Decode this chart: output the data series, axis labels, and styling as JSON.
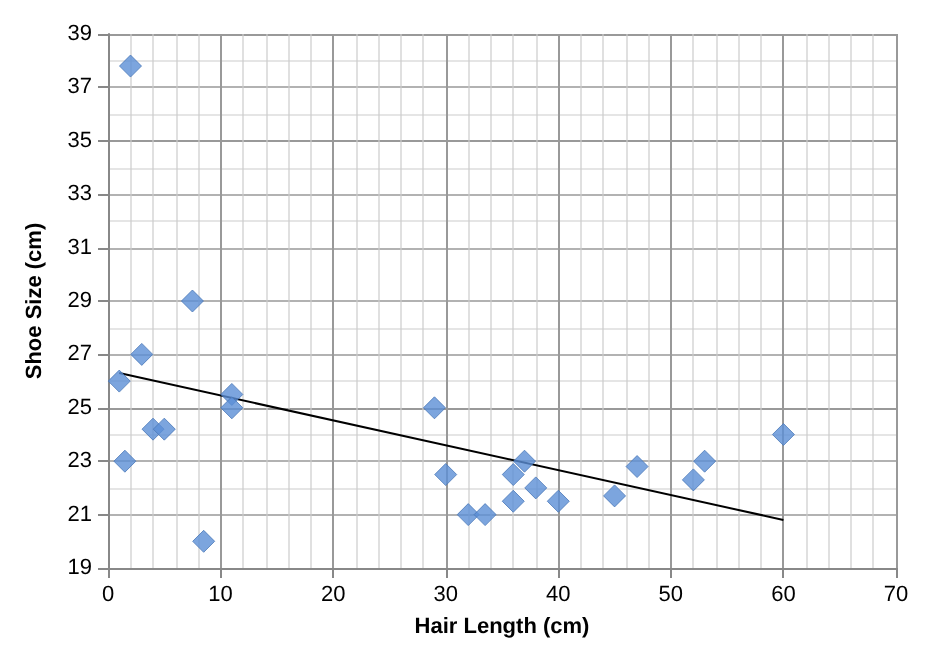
{
  "chart_data": {
    "type": "scatter",
    "xlabel": "Hair Length (cm)",
    "ylabel": "Shoe Size (cm)",
    "series": [
      {
        "color": "#5b8fd6",
        "marker": "diamond",
        "x": [
          1,
          1.5,
          2,
          3,
          4,
          5,
          7.5,
          8.5,
          11,
          11,
          29,
          30,
          32,
          33.5,
          36,
          37,
          36,
          38,
          40,
          45,
          47,
          52,
          53,
          60
        ],
        "values": [
          26,
          23,
          37.8,
          27,
          24.2,
          24.2,
          29,
          20,
          25.5,
          25,
          25,
          22.5,
          21,
          21,
          22.5,
          23,
          21.5,
          22,
          21.5,
          21.7,
          22.8,
          22.3,
          23,
          24
        ]
      },
      {
        "type": "line",
        "color": "#000000",
        "marker": "none",
        "x": [
          1,
          60
        ],
        "values": [
          26.3,
          20.8
        ]
      }
    ],
    "xlim": [
      0,
      70
    ],
    "xticks": [
      0,
      10,
      20,
      30,
      40,
      50,
      60,
      70
    ],
    "ylim": [
      19,
      39
    ],
    "yticks": [
      19,
      21,
      23,
      25,
      27,
      29,
      31,
      33,
      35,
      37,
      39
    ],
    "grid": true
  }
}
